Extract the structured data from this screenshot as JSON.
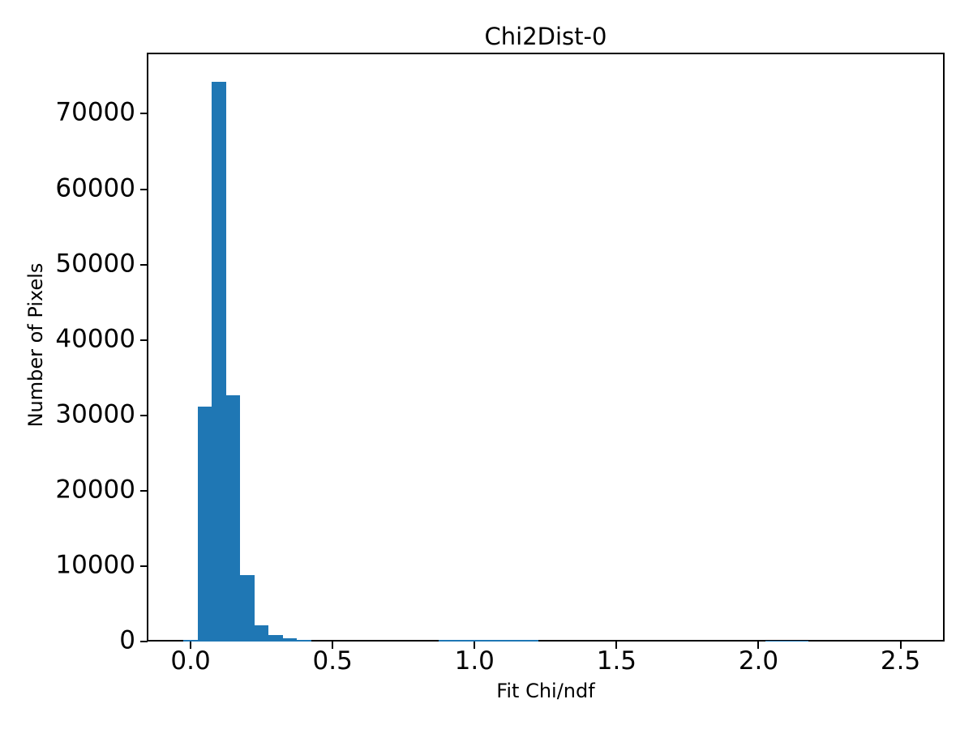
{
  "chart_data": {
    "type": "bar",
    "subtype": "histogram",
    "title": "Chi2Dist-0",
    "xlabel": "Fit Chi/ndf",
    "ylabel": "Number of Pixels",
    "bar_color": "#1f77b4",
    "text_color": "#000000",
    "background_color": "#ffffff",
    "grid": false,
    "legend": null,
    "xlim": [
      -0.1515,
      2.6525
    ],
    "ylim": [
      0,
      78000
    ],
    "x_ticks": [
      {
        "value": 0.0,
        "label": "0.0"
      },
      {
        "value": 0.5,
        "label": "0.5"
      },
      {
        "value": 1.0,
        "label": "1.0"
      },
      {
        "value": 1.5,
        "label": "1.5"
      },
      {
        "value": 2.0,
        "label": "2.0"
      },
      {
        "value": 2.5,
        "label": "2.5"
      }
    ],
    "y_ticks": [
      {
        "value": 0,
        "label": "0"
      },
      {
        "value": 10000,
        "label": "10000"
      },
      {
        "value": 20000,
        "label": "20000"
      },
      {
        "value": 30000,
        "label": "30000"
      },
      {
        "value": 40000,
        "label": "40000"
      },
      {
        "value": 50000,
        "label": "50000"
      },
      {
        "value": 60000,
        "label": "60000"
      },
      {
        "value": 70000,
        "label": "70000"
      }
    ],
    "bin_width": 0.05,
    "bins": [
      {
        "x_start": -0.025,
        "count": 250
      },
      {
        "x_start": 0.025,
        "count": 31200
      },
      {
        "x_start": 0.075,
        "count": 74200
      },
      {
        "x_start": 0.125,
        "count": 32700
      },
      {
        "x_start": 0.175,
        "count": 8800
      },
      {
        "x_start": 0.225,
        "count": 2100
      },
      {
        "x_start": 0.275,
        "count": 850
      },
      {
        "x_start": 0.325,
        "count": 400
      },
      {
        "x_start": 0.375,
        "count": 200
      },
      {
        "x_start": 0.875,
        "count": 200
      },
      {
        "x_start": 0.925,
        "count": 200
      },
      {
        "x_start": 0.975,
        "count": 200
      },
      {
        "x_start": 1.025,
        "count": 200
      },
      {
        "x_start": 1.075,
        "count": 200
      },
      {
        "x_start": 1.125,
        "count": 200
      },
      {
        "x_start": 1.175,
        "count": 200
      },
      {
        "x_start": 2.025,
        "count": 150
      },
      {
        "x_start": 2.075,
        "count": 150
      },
      {
        "x_start": 2.125,
        "count": 150
      }
    ],
    "bins_note": "all other bins in [-0.025, 2.525] have count 0"
  }
}
